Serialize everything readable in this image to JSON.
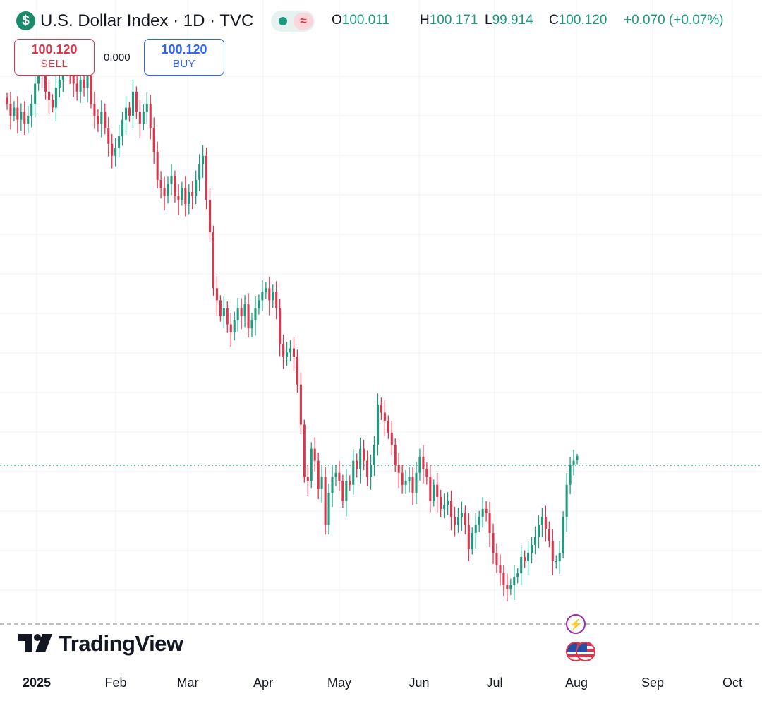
{
  "header": {
    "symbol_icon": "$",
    "title": "U.S. Dollar Index · 1D · TVC",
    "status_dot_color": "#1b9c7f",
    "wave_icon": "≈",
    "ohlc": {
      "o_label": "O",
      "o_value": "100.011",
      "h_label": "H",
      "h_value": "100.171",
      "l_label": "L",
      "l_value": "99.914",
      "c_label": "C",
      "c_value": "100.120",
      "change": "+0.070 (+0.07%)"
    }
  },
  "trade": {
    "sell_price": "100.120",
    "sell_label": "SELL",
    "spread": "0.000",
    "buy_price": "100.120",
    "buy_label": "BUY"
  },
  "branding": {
    "logo_text": "TradingView"
  },
  "events": {
    "flash_icon": "⚡",
    "flag_icon": "us-flag-icon"
  },
  "colors": {
    "up": "#1b9c7f",
    "down": "#e0344b",
    "grid": "#eef0f3",
    "price_line": "#1b9c7f"
  },
  "chart_data": {
    "type": "candlestick",
    "x_axis_labels": [
      "2025",
      "Feb",
      "Mar",
      "Apr",
      "May",
      "Jun",
      "Jul",
      "Aug",
      "Sep",
      "Oct"
    ],
    "last_price": 100.12,
    "last_bar": {
      "open": 100.011,
      "high": 100.171,
      "low": 99.914,
      "close": 100.12
    },
    "y_range_estimate": [
      96.2,
      110.3
    ],
    "grid": true,
    "closes": [
      108.9,
      108.6,
      108.8,
      108.5,
      108.7,
      108.4,
      108.6,
      108.9,
      109.4,
      109.7,
      109.6,
      109.2,
      109.0,
      108.8,
      109.3,
      109.5,
      109.8,
      110.0,
      109.7,
      109.4,
      109.2,
      109.5,
      109.3,
      109.6,
      108.9,
      108.6,
      108.4,
      108.7,
      108.3,
      107.9,
      107.6,
      107.8,
      108.1,
      108.5,
      108.8,
      108.6,
      109.2,
      108.7,
      108.4,
      108.7,
      108.9,
      108.3,
      107.7,
      107.0,
      106.8,
      106.6,
      106.9,
      107.1,
      106.6,
      106.5,
      106.8,
      106.4,
      106.7,
      106.6,
      107.0,
      107.4,
      107.6,
      106.5,
      105.7,
      104.3,
      104.0,
      103.6,
      103.8,
      103.4,
      103.2,
      103.5,
      103.8,
      103.6,
      103.9,
      103.3,
      103.5,
      103.8,
      104.0,
      104.2,
      104.3,
      104.0,
      104.2,
      103.8,
      102.9,
      102.6,
      102.7,
      102.8,
      102.6,
      101.9,
      100.9,
      99.6,
      99.5,
      100.3,
      100.0,
      99.3,
      99.6,
      98.4,
      99.2,
      99.6,
      99.7,
      99.5,
      99.0,
      99.5,
      99.4,
      100.0,
      99.8,
      100.3,
      100.0,
      99.6,
      99.9,
      100.4,
      101.4,
      101.2,
      101.0,
      100.7,
      100.4,
      99.9,
      99.7,
      99.4,
      99.5,
      99.6,
      99.2,
      99.7,
      100.1,
      99.8,
      99.6,
      99.0,
      99.4,
      99.1,
      98.8,
      98.9,
      99.0,
      98.6,
      98.4,
      98.6,
      98.7,
      98.4,
      97.8,
      98.2,
      98.4,
      98.6,
      98.8,
      98.7,
      98.2,
      97.7,
      97.4,
      97.2,
      96.9,
      96.8,
      96.9,
      97.1,
      97.2,
      97.6,
      97.5,
      97.7,
      97.9,
      98.1,
      98.4,
      98.6,
      98.3,
      98.0,
      97.5,
      97.5,
      97.7,
      98.6,
      99.4,
      99.9,
      100.0,
      100.12
    ]
  }
}
